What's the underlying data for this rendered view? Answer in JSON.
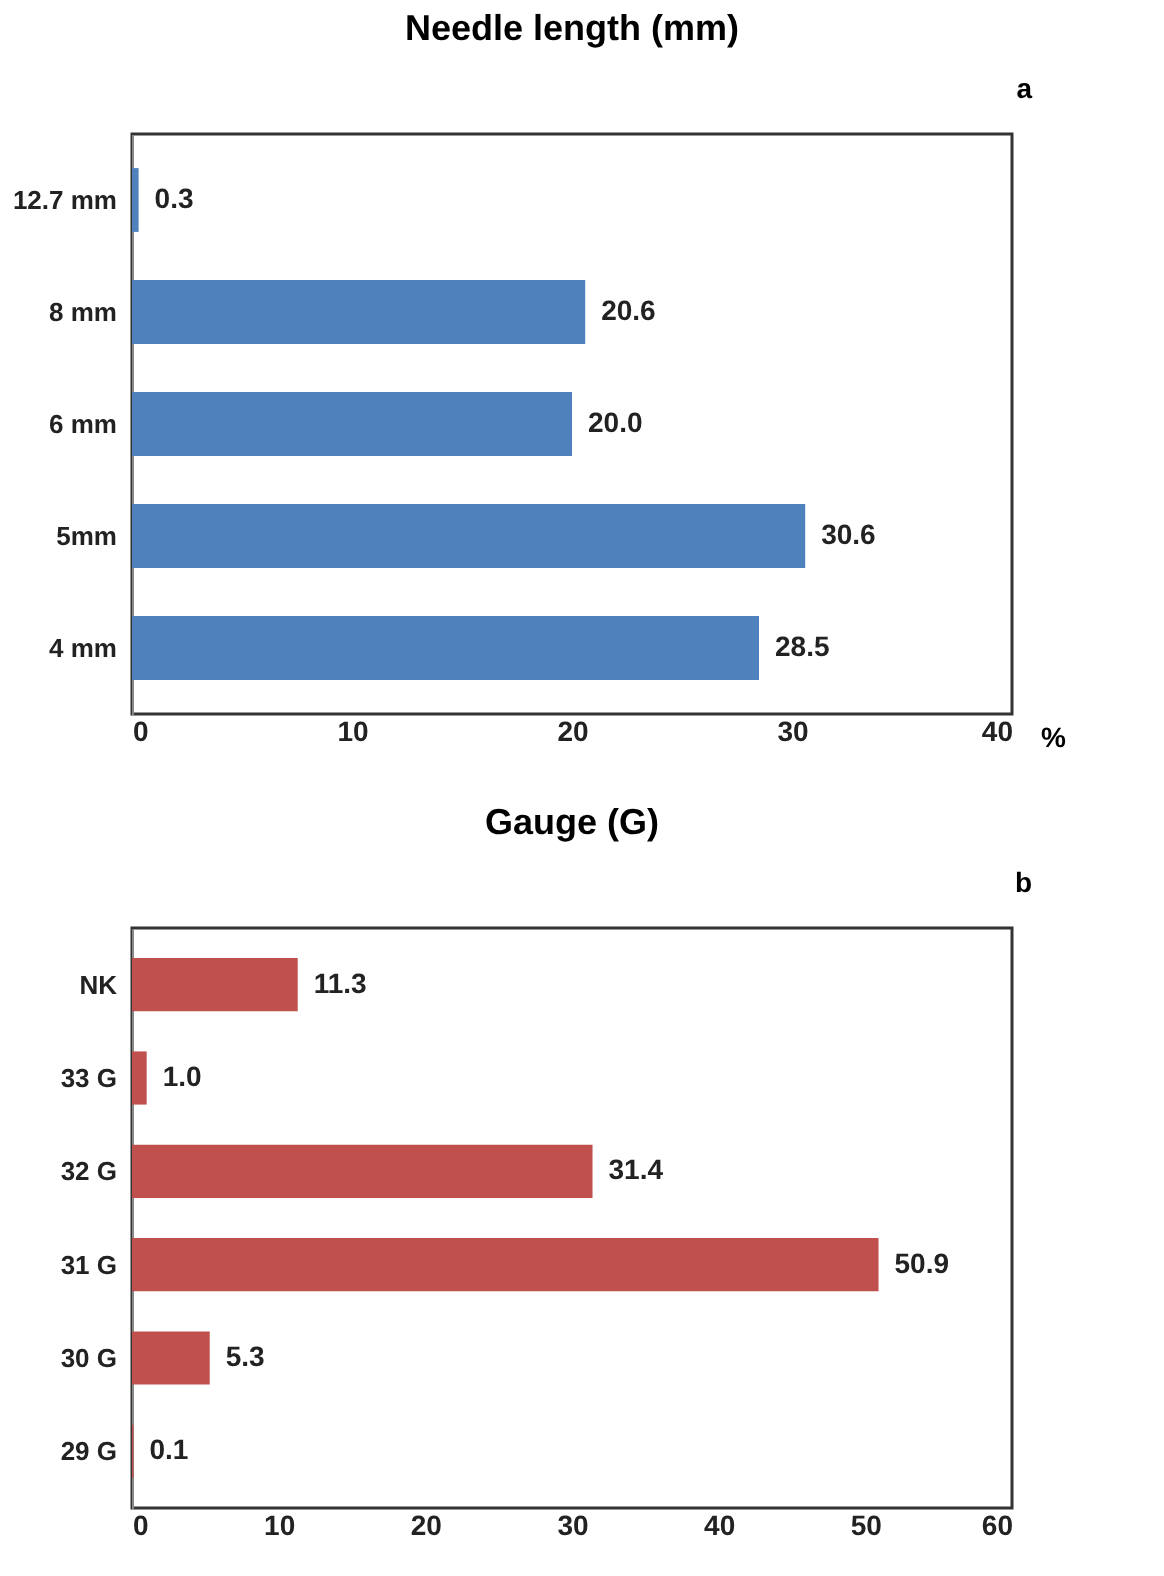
{
  "chart_data": [
    {
      "type": "bar",
      "orientation": "horizontal",
      "title": "Needle length (mm)",
      "xlabel": "%",
      "annotations": [
        "a"
      ],
      "categories": [
        "12.7 mm",
        "8 mm",
        "6 mm",
        "5mm",
        "4 mm"
      ],
      "values": [
        0.3,
        20.6,
        20.0,
        30.6,
        28.5
      ],
      "value_labels": [
        "0.3",
        "20.6",
        "20.0",
        "30.6",
        "28.5"
      ],
      "color": "#4f81bd",
      "xlim": [
        0,
        40
      ],
      "xticks": [
        0,
        10,
        20,
        30,
        40
      ]
    },
    {
      "type": "bar",
      "orientation": "horizontal",
      "title": "Gauge (G)",
      "annotations": [
        "b"
      ],
      "categories": [
        "NK",
        "33 G",
        "32 G",
        "31 G",
        "30 G",
        "29 G"
      ],
      "values": [
        11.3,
        1.0,
        31.4,
        50.9,
        5.3,
        0.1
      ],
      "value_labels": [
        "11.3",
        "1.0",
        "31.4",
        "50.9",
        "5.3",
        "0.1"
      ],
      "color": "#c0504d",
      "xlim": [
        0,
        60
      ],
      "xticks": [
        0,
        10,
        20,
        30,
        40,
        50,
        60
      ]
    }
  ]
}
